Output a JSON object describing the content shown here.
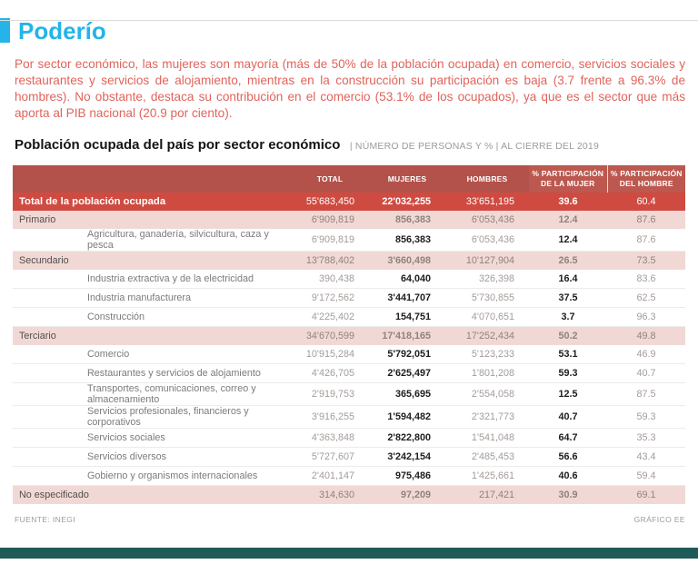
{
  "page": {
    "title": "Poderío",
    "intro": "Por sector económico, las mujeres son mayoría (más de 50% de la población ocupada) en comercio, servicios sociales y restaurantes y servicios de alojamiento, mientras en la construcción su participación es baja (3.7 frente a 96.3% de hombres). No obstante, destaca su contribución en el comercio (53.1% de los ocupados), ya que es el sector que más aporta al PIB nacional (20.9 por ciento).",
    "table_title": "Población ocupada del país por sector económico",
    "table_subtitle": "| NÚMERO DE PERSONAS Y % | AL CIERRE DEL 2019",
    "footer_left": "FUENTE: INEGI",
    "footer_right": "GRÁFICO EE"
  },
  "colors": {
    "accent_cyan": "#24b4e8",
    "intro_red": "#e0645b",
    "header_red": "#b2524b",
    "header_pct_red": "#bc584f",
    "total_row_red": "#cf4b41",
    "section_pink": "#f2d8d4",
    "bottom_bar_teal": "#1e5b58"
  },
  "chart_data": {
    "type": "table",
    "title": "Población ocupada del país por sector económico",
    "subtitle": "NÚMERO DE PERSONAS Y % | AL CIERRE DEL 2019",
    "columns": [
      "",
      "TOTAL",
      "MUJERES",
      "HOMBRES",
      "% PARTICIPACIÓN\nDE LA MUJER",
      "% PARTICIPACIÓN\nDEL HOMBRE"
    ],
    "rows": [
      {
        "label": "Total de la población ocupada",
        "level": "total",
        "values": [
          "55'683,450",
          "22'032,255",
          "33'651,195",
          "39.6",
          "60.4"
        ]
      },
      {
        "label": "Primario",
        "level": "section",
        "values": [
          "6'909,819",
          "856,383",
          "6'053,436",
          "12.4",
          "87.6"
        ]
      },
      {
        "label": "Agricultura, ganadería, silvicultura, caza y pesca",
        "level": "sub",
        "values": [
          "6'909,819",
          "856,383",
          "6'053,436",
          "12.4",
          "87.6"
        ]
      },
      {
        "label": "Secundario",
        "level": "section",
        "values": [
          "13'788,402",
          "3'660,498",
          "10'127,904",
          "26.5",
          "73.5"
        ]
      },
      {
        "label": "Industria extractiva y de la electricidad",
        "level": "sub",
        "values": [
          "390,438",
          "64,040",
          "326,398",
          "16.4",
          "83.6"
        ]
      },
      {
        "label": "Industria manufacturera",
        "level": "sub",
        "values": [
          "9'172,562",
          "3'441,707",
          "5'730,855",
          "37.5",
          "62.5"
        ]
      },
      {
        "label": "Construcción",
        "level": "sub",
        "values": [
          "4'225,402",
          "154,751",
          "4'070,651",
          "3.7",
          "96.3"
        ]
      },
      {
        "label": "Terciario",
        "level": "section",
        "values": [
          "34'670,599",
          "17'418,165",
          "17'252,434",
          "50.2",
          "49.8"
        ]
      },
      {
        "label": "Comercio",
        "level": "sub",
        "values": [
          "10'915,284",
          "5'792,051",
          "5'123,233",
          "53.1",
          "46.9"
        ]
      },
      {
        "label": "Restaurantes y servicios de alojamiento",
        "level": "sub",
        "values": [
          "4'426,705",
          "2'625,497",
          "1'801,208",
          "59.3",
          "40.7"
        ]
      },
      {
        "label": "Transportes, comunicaciones, correo y almacenamiento",
        "level": "sub",
        "values": [
          "2'919,753",
          "365,695",
          "2'554,058",
          "12.5",
          "87.5"
        ]
      },
      {
        "label": "Servicios profesionales, financieros y corporativos",
        "level": "sub",
        "values": [
          "3'916,255",
          "1'594,482",
          "2'321,773",
          "40.7",
          "59.3"
        ]
      },
      {
        "label": "Servicios sociales",
        "level": "sub",
        "values": [
          "4'363,848",
          "2'822,800",
          "1'541,048",
          "64.7",
          "35.3"
        ]
      },
      {
        "label": "Servicios diversos",
        "level": "sub",
        "values": [
          "5'727,607",
          "3'242,154",
          "2'485,453",
          "56.6",
          "43.4"
        ]
      },
      {
        "label": "Gobierno y organismos internacionales",
        "level": "sub",
        "values": [
          "2'401,147",
          "975,486",
          "1'425,661",
          "40.6",
          "59.4"
        ]
      },
      {
        "label": "No especificado",
        "level": "section",
        "values": [
          "314,630",
          "97,209",
          "217,421",
          "30.9",
          "69.1"
        ]
      }
    ]
  }
}
